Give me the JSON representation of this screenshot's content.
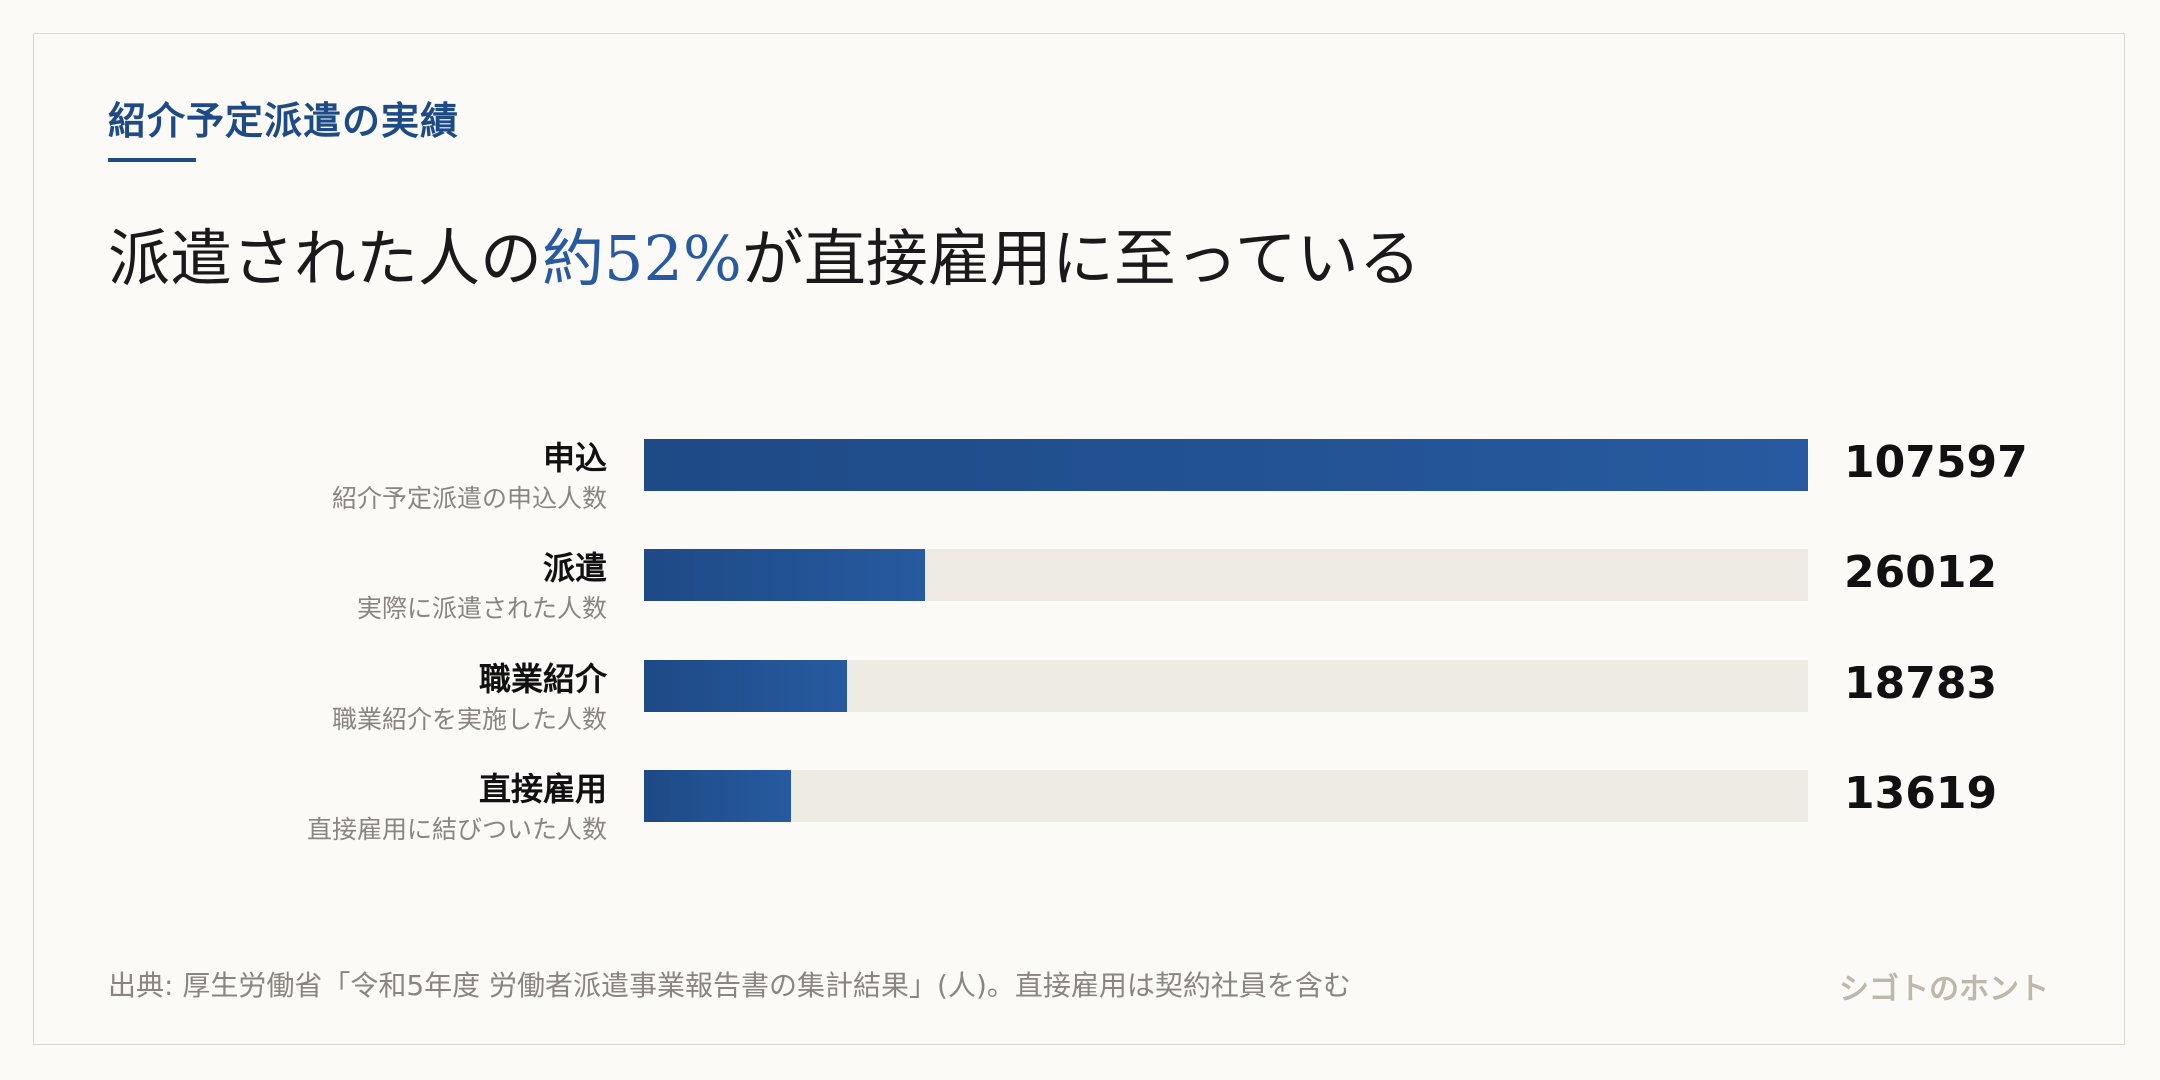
{
  "header": {
    "eyebrow": "紹介予定派遣の実績",
    "headline_pre": "派遣された人の",
    "headline_accent": "約52%",
    "headline_post": "が直接雇用に至っている"
  },
  "chart_data": {
    "type": "bar",
    "orientation": "horizontal",
    "categories": [
      "申込",
      "派遣",
      "職業紹介",
      "直接雇用"
    ],
    "descriptions": [
      "紹介予定派遣の申込人数",
      "実際に派遣された人数",
      "職業紹介を実施した人数",
      "直接雇用に結びついた人数"
    ],
    "values": [
      107597,
      26012,
      18783,
      13619
    ],
    "xlim": [
      0,
      107597
    ],
    "colors": {
      "bar": "#1e4a86",
      "bar_end": "#275aa0",
      "track": "#eeebe2"
    }
  },
  "footer": {
    "source": "出典: 厚生労働省「令和5年度 労働者派遣事業報告書の集計結果」(人)。直接雇用は契約社員を含む",
    "brand": "シゴトのホント"
  }
}
